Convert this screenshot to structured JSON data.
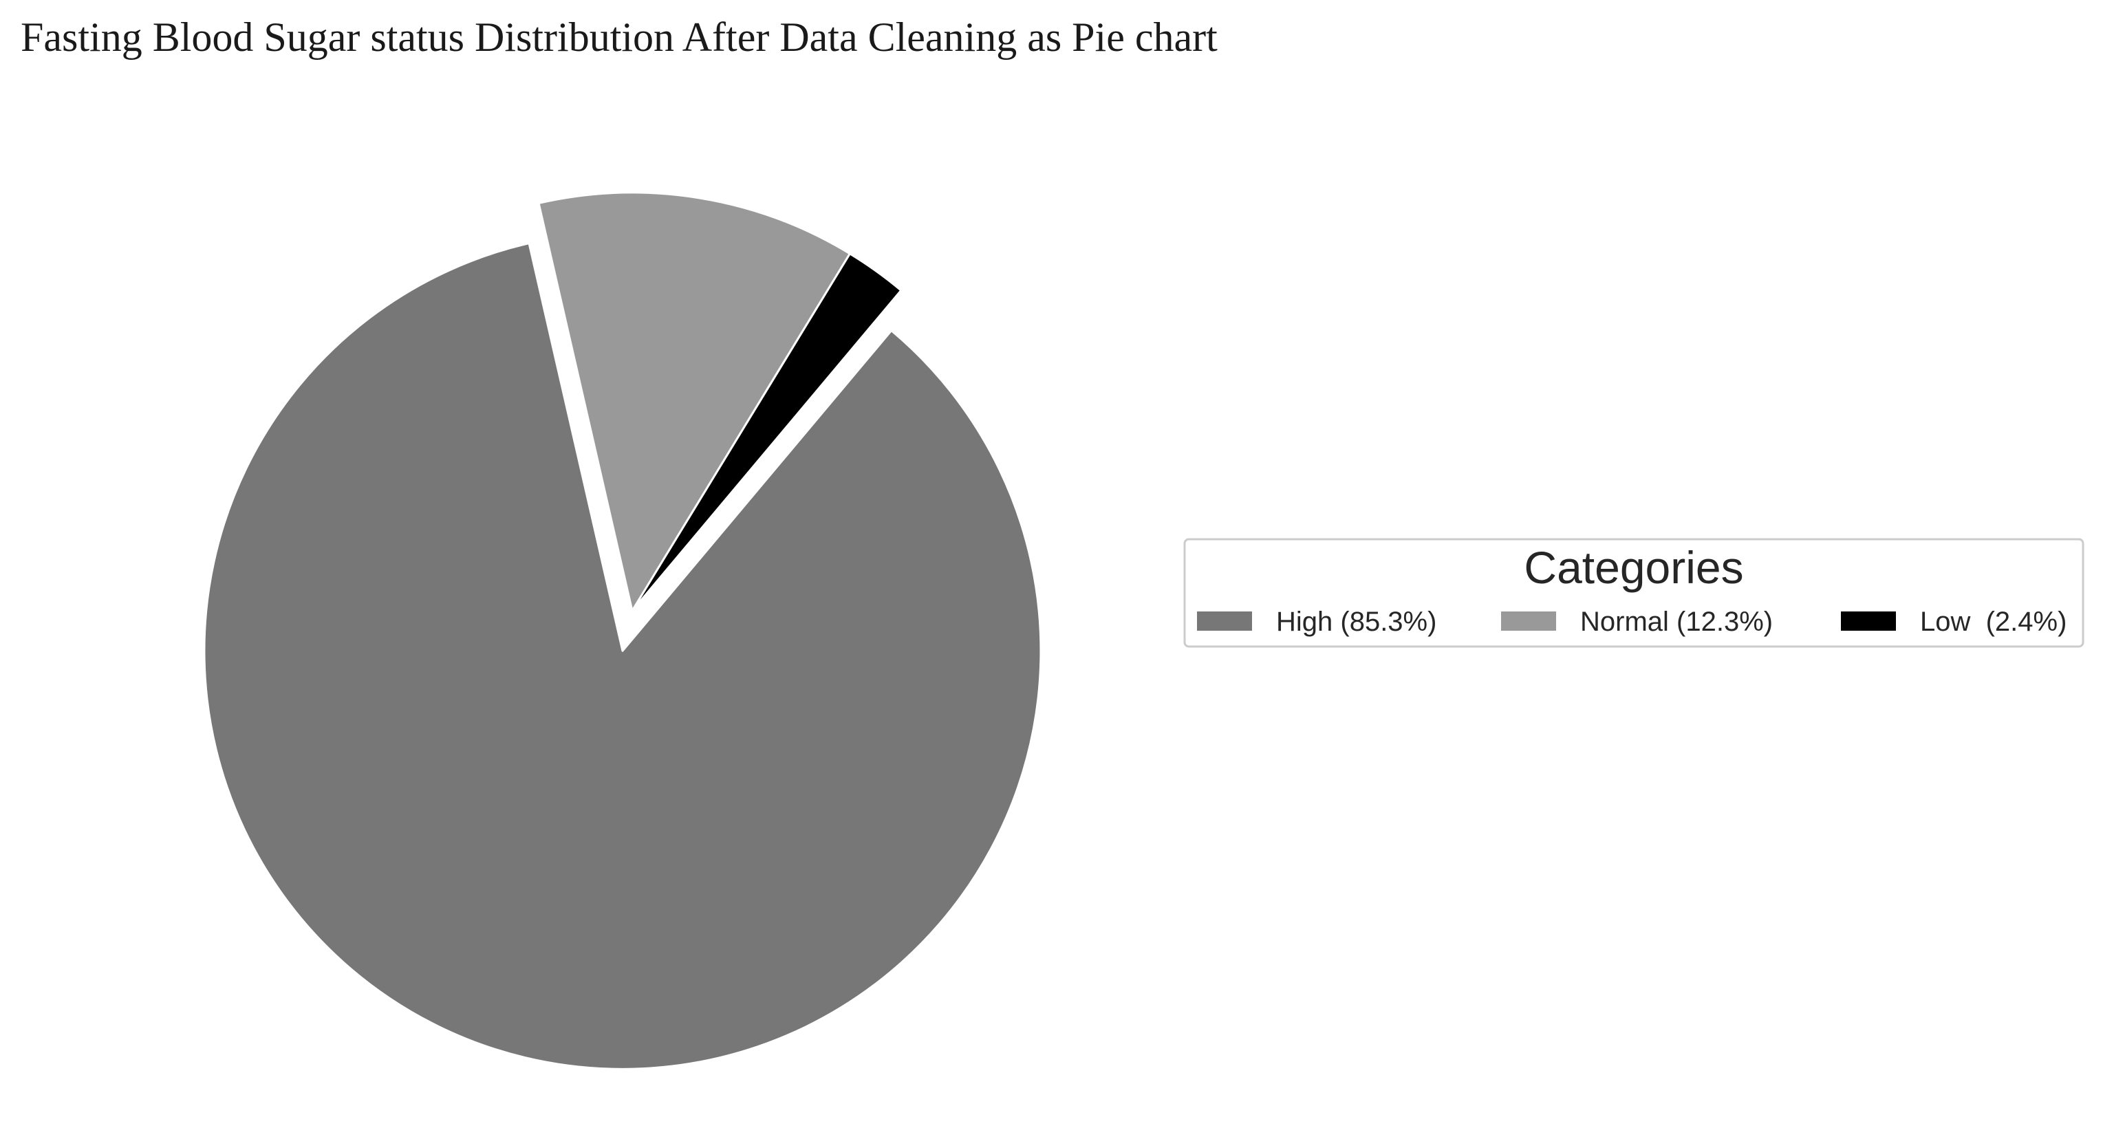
{
  "chart_data": {
    "type": "pie",
    "title": "Fasting Blood Sugar status Distribution After Data Cleaning as Pie chart",
    "slices": [
      {
        "label": "High",
        "value": 85.3,
        "color": "#777777",
        "exploded": true
      },
      {
        "label": "Normal",
        "value": 12.3,
        "color": "#999999",
        "exploded": false
      },
      {
        "label": "Low",
        "value": 2.4,
        "color": "#000000",
        "exploded": false
      }
    ],
    "legend": {
      "title": "Categories",
      "placement": "right",
      "entries": [
        {
          "label": "High (85.3%)",
          "color": "#777777"
        },
        {
          "label": "Normal (12.3%)",
          "color": "#999999"
        },
        {
          "label": "Low  (2.4%)",
          "color": "#000000"
        }
      ]
    }
  }
}
